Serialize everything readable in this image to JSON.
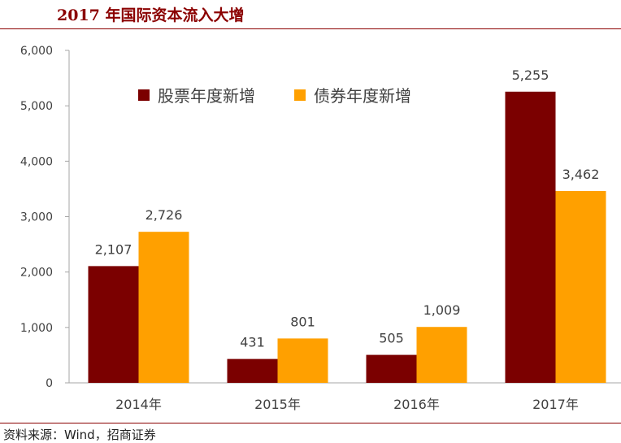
{
  "title": "2017 年国际资本流入大增",
  "source": "资料来源：Wind，招商证券",
  "colors": {
    "accent": "#8b0000",
    "series_equity": "#7b0000",
    "series_bond": "#ffa000"
  },
  "chart_data": {
    "type": "bar",
    "title": "",
    "xlabel": "",
    "ylabel": "",
    "categories": [
      "2014年",
      "2015年",
      "2016年",
      "2017年"
    ],
    "series": [
      {
        "name": "股票年度新增",
        "values": [
          2107,
          431,
          505,
          5255
        ],
        "labels": [
          "2,107",
          "431",
          "505",
          "5,255"
        ]
      },
      {
        "name": "债券年度新增",
        "values": [
          2726,
          801,
          1009,
          3462
        ],
        "labels": [
          "2,726",
          "801",
          "1,009",
          "3,462"
        ]
      }
    ],
    "ylim": [
      0,
      6000
    ],
    "yticks": [
      0,
      1000,
      2000,
      3000,
      4000,
      5000,
      6000
    ],
    "ytick_labels": [
      "0",
      "1,000",
      "2,000",
      "3,000",
      "4,000",
      "5,000",
      "6,000"
    ],
    "grid": false,
    "legend_position": "top-left",
    "data_labels": true
  }
}
